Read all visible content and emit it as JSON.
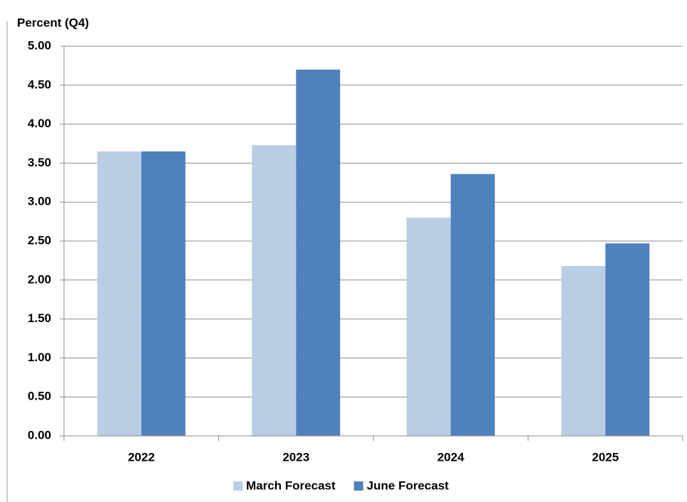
{
  "chart_data": {
    "type": "bar",
    "y_axis_title": "Percent (Q4)",
    "categories": [
      "2022",
      "2023",
      "2024",
      "2025"
    ],
    "series": [
      {
        "name": "March Forecast",
        "color": "#b9cde5",
        "values": [
          3.65,
          3.73,
          2.8,
          2.18
        ]
      },
      {
        "name": "June Forecast",
        "color": "#4f81bd",
        "values": [
          3.65,
          4.7,
          3.36,
          2.47
        ]
      }
    ],
    "ylim": [
      0,
      5
    ],
    "yticks": [
      {
        "value": 0,
        "label": "0.00"
      },
      {
        "value": 0.5,
        "label": "0.50"
      },
      {
        "value": 1,
        "label": "1.00"
      },
      {
        "value": 1.5,
        "label": "1.50"
      },
      {
        "value": 2,
        "label": "2.00"
      },
      {
        "value": 2.5,
        "label": "2.50"
      },
      {
        "value": 3,
        "label": "3.00"
      },
      {
        "value": 3.5,
        "label": "3.50"
      },
      {
        "value": 4,
        "label": "4.00"
      },
      {
        "value": 4.5,
        "label": "4.50"
      },
      {
        "value": 5,
        "label": "5.00"
      }
    ],
    "grid": true,
    "legend": "bottom"
  }
}
